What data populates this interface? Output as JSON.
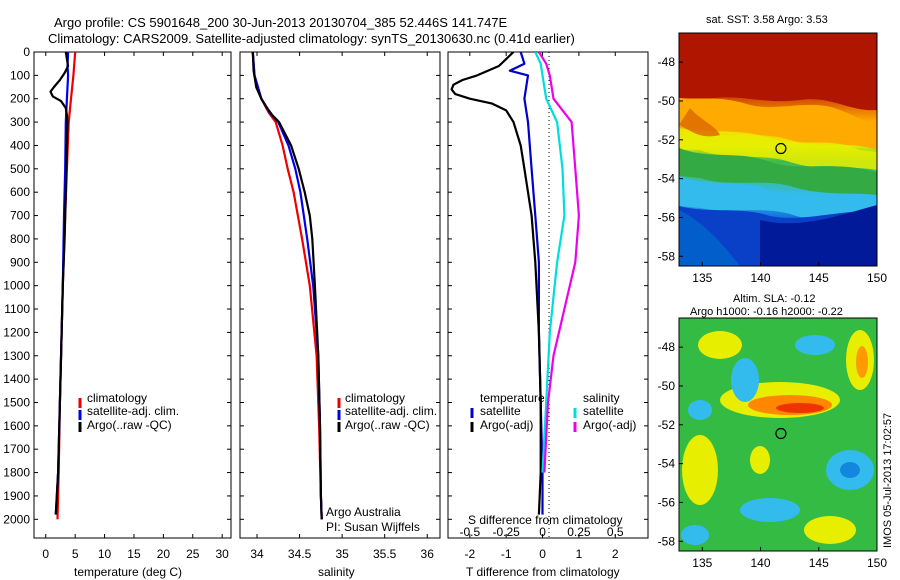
{
  "header": {
    "line1": "Argo profile: CS 5901648_200 30-Jun-2013 20130704_385 52.446S 141.747E",
    "line2": "Climatology: CARS2009. Satellite-adjusted climatology: synTS_20130630.nc (0.41d earlier)"
  },
  "chart_data": [
    {
      "type": "line",
      "xlabel": "temperature (deg C)",
      "ylabel": "",
      "xlim": [
        -2,
        31.5
      ],
      "ylim": [
        2080,
        0
      ],
      "xticks": [
        0,
        5,
        10,
        15,
        20,
        25,
        30
      ],
      "yticks": [
        0,
        100,
        200,
        300,
        400,
        500,
        600,
        700,
        800,
        900,
        1000,
        1100,
        1200,
        1300,
        1400,
        1500,
        1600,
        1700,
        1800,
        1900,
        2000
      ],
      "legend": [
        "climatology",
        "satellite-adj. clim.",
        "Argo(..raw -QC)"
      ],
      "series": [
        {
          "name": "climatology",
          "color": "#ee0000",
          "y": [
            0,
            100,
            200,
            300,
            500,
            700,
            1000,
            1500,
            1800,
            2000
          ],
          "x": [
            5.0,
            4.7,
            4.3,
            3.9,
            3.6,
            3.3,
            2.9,
            2.4,
            2.2,
            2.0
          ]
        },
        {
          "name": "satellite-adj. clim.",
          "color": "#0000ee",
          "y": [
            0,
            60,
            100,
            200,
            300,
            500,
            700,
            1000,
            1500,
            1800,
            1980
          ],
          "x": [
            3.8,
            3.7,
            3.8,
            3.6,
            3.4,
            3.3,
            3.1,
            2.9,
            2.4,
            2.1,
            1.7
          ]
        },
        {
          "name": "Argo(..raw -QC)",
          "color": "#000000",
          "y": [
            0,
            30,
            60,
            90,
            120,
            150,
            170,
            190,
            210,
            240,
            270,
            300,
            400,
            600,
            800,
            1000,
            1500,
            1800,
            1980
          ],
          "x": [
            3.4,
            3.6,
            3.8,
            3.2,
            2.4,
            1.4,
            0.8,
            1.2,
            2.6,
            3.4,
            3.6,
            3.7,
            3.6,
            3.4,
            3.2,
            2.9,
            2.4,
            2.1,
            1.7
          ]
        }
      ]
    },
    {
      "type": "line",
      "xlabel": "salinity",
      "xlim": [
        33.8,
        36.15
      ],
      "ylim": [
        2080,
        0
      ],
      "xticks": [
        34,
        34.5,
        35,
        35.5,
        36
      ],
      "legend": [
        "climatology",
        "satellite-adj. clim.",
        "Argo(..raw -QC)"
      ],
      "annotations": [
        "Argo Australia",
        "PI: Susan Wijffels"
      ],
      "series": [
        {
          "name": "climatology",
          "color": "#ee0000",
          "y": [
            0,
            100,
            200,
            260,
            300,
            400,
            500,
            600,
            800,
            1000,
            1300,
            1600,
            1900,
            2000
          ],
          "x": [
            33.95,
            33.97,
            34.05,
            34.14,
            34.22,
            34.3,
            34.36,
            34.43,
            34.53,
            34.62,
            34.7,
            34.73,
            34.75,
            34.76
          ]
        },
        {
          "name": "satellite-adj. clim.",
          "color": "#0000ee",
          "y": [
            0,
            100,
            200,
            260,
            300,
            400,
            500,
            600,
            800,
            1000,
            1300,
            1600,
            1900,
            2000
          ],
          "x": [
            33.95,
            33.97,
            34.05,
            34.15,
            34.25,
            34.37,
            34.45,
            34.51,
            34.59,
            34.66,
            34.72,
            34.74,
            34.75,
            34.76
          ]
        },
        {
          "name": "Argo(..raw -QC)",
          "color": "#000000",
          "y": [
            0,
            80,
            150,
            200,
            240,
            270,
            300,
            400,
            500,
            600,
            700,
            800,
            1000,
            1300,
            1600,
            1900,
            2000
          ],
          "x": [
            33.95,
            33.96,
            33.99,
            34.05,
            34.12,
            34.18,
            34.26,
            34.4,
            34.49,
            34.56,
            34.62,
            34.65,
            34.68,
            34.72,
            34.74,
            34.75,
            34.76
          ]
        }
      ]
    },
    {
      "type": "line",
      "xlabel": "T difference from climatology",
      "xlabel_top": "S difference from climatology",
      "xlim": [
        -2.6,
        2.9
      ],
      "ylim": [
        2080,
        0
      ],
      "xticks": [
        -2,
        -1,
        0,
        1,
        2
      ],
      "xticks_top": [
        "-0.5",
        "-0.25",
        "0",
        "0.25",
        "0.5"
      ],
      "legend": [
        "temperature",
        "satellite",
        "Argo(-adj)",
        "salinity",
        "satellite",
        "Argo(-adj)"
      ],
      "series": [
        {
          "name": "temperature satellite",
          "color": "#0000cc",
          "y": [
            0,
            50,
            80,
            100,
            200,
            300,
            500,
            700,
            900,
            1200,
            1500,
            1800,
            1980
          ],
          "x": [
            -0.6,
            -0.5,
            -0.9,
            -0.4,
            -0.5,
            -0.4,
            -0.3,
            -0.2,
            -0.1,
            -0.1,
            -0.05,
            0.0,
            0.0
          ]
        },
        {
          "name": "temperature Argo(-adj)",
          "color": "#000000",
          "y": [
            0,
            60,
            100,
            120,
            140,
            160,
            180,
            200,
            220,
            250,
            300,
            400,
            500,
            700,
            900,
            1200,
            1500,
            1800,
            1980
          ],
          "x": [
            -0.8,
            -1.2,
            -1.8,
            -2.2,
            -2.45,
            -2.5,
            -2.4,
            -2.0,
            -1.4,
            -1.0,
            -0.8,
            -0.6,
            -0.5,
            -0.3,
            -0.2,
            -0.1,
            -0.05,
            -0.05,
            -0.1
          ]
        },
        {
          "name": "salinity satellite",
          "color": "#00dddd",
          "y": [
            0,
            50,
            100,
            200,
            300,
            500,
            700,
            900,
            1200,
            1500,
            1800
          ],
          "x": [
            -0.2,
            -0.05,
            0.0,
            0.1,
            0.4,
            0.55,
            0.6,
            0.4,
            0.2,
            0.1,
            0.0
          ]
        },
        {
          "name": "salinity Argo(-adj)",
          "color": "#ee00ee",
          "y": [
            0,
            50,
            100,
            200,
            300,
            500,
            700,
            900,
            1100,
            1300,
            1500,
            1800
          ],
          "x": [
            -0.1,
            0.1,
            0.2,
            0.3,
            0.8,
            0.9,
            1.0,
            0.9,
            0.6,
            0.3,
            0.15,
            0.05
          ]
        }
      ]
    },
    {
      "type": "heatmap",
      "title": "sat. SST: 3.58 Argo: 3.53",
      "xlim": [
        133,
        150
      ],
      "ylim": [
        -58.5,
        -46.5
      ],
      "xticks": [
        135,
        140,
        145,
        150
      ],
      "yticks": [
        -48,
        -50,
        -52,
        -54,
        -56,
        -58
      ],
      "marker": {
        "x": 141.75,
        "y": -52.45
      }
    },
    {
      "type": "heatmap",
      "title": "Altim. SLA: -0.12",
      "subtitle": "Argo h1000: -0.16 h2000: -0.22",
      "xlim": [
        133,
        150
      ],
      "ylim": [
        -58.5,
        -46.5
      ],
      "xticks": [
        135,
        140,
        145,
        150
      ],
      "yticks": [
        -48,
        -50,
        -52,
        -54,
        -56,
        -58
      ],
      "marker": {
        "x": 141.75,
        "y": -52.45
      }
    }
  ],
  "watermark": "IMOS 05-Jul-2013 17:02:57",
  "colors": {
    "red": "#ee0000",
    "blue": "#0000ee",
    "black": "#000000",
    "cyan": "#00dddd",
    "magenta": "#ee00ee"
  }
}
